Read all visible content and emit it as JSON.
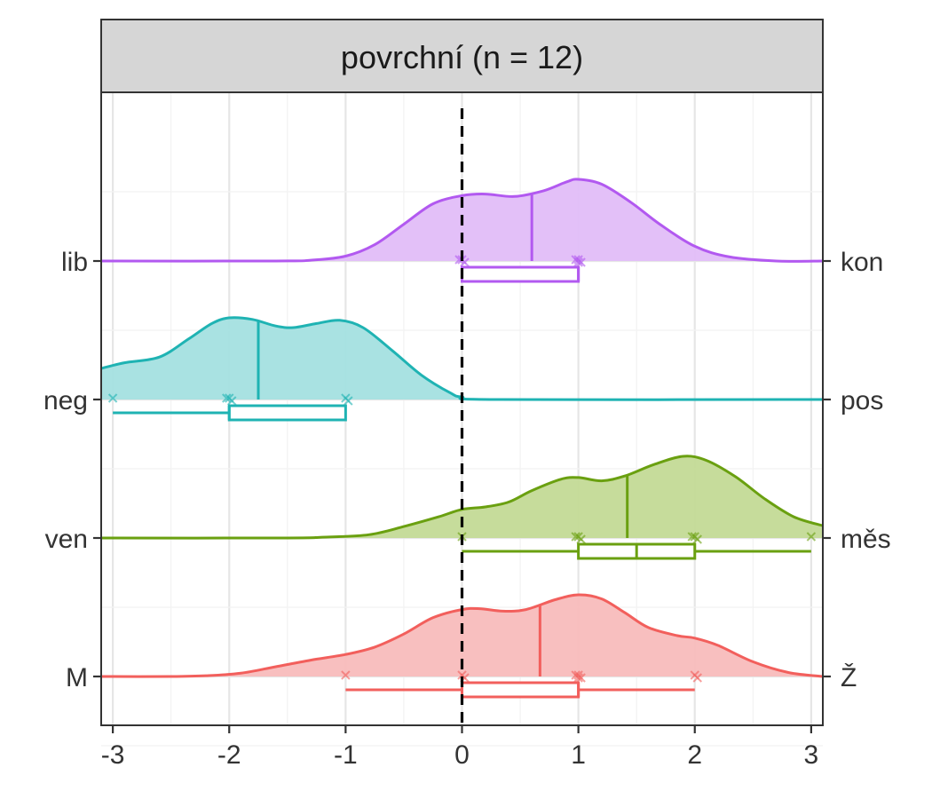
{
  "chart_data": {
    "type": "raincloud",
    "title": "povrchní (n = 12)",
    "xlabel": "",
    "ylabel": "",
    "xlim": [
      -3.1,
      3.1
    ],
    "x_ticks": [
      -3,
      -2,
      -1,
      0,
      1,
      2,
      3
    ],
    "x_tick_labels": [
      "-3",
      "-2",
      "-1",
      "0",
      "1",
      "2",
      "3"
    ],
    "reference_line_x": 0,
    "grid": true,
    "series": [
      {
        "left_label": "M",
        "right_label": "Ž",
        "color": "#f25f5c",
        "fill": "#f8bcbc",
        "mean": 0.67,
        "points": [
          -1,
          0,
          0,
          1,
          1,
          1,
          1,
          2,
          2
        ],
        "box": {
          "whisker_low": -1,
          "q1": 0,
          "median": 1,
          "q3": 1,
          "whisker_high": 2
        },
        "density": [
          [
            -3.1,
            0.0
          ],
          [
            -2.5,
            0.0
          ],
          [
            -2.2,
            0.01
          ],
          [
            -1.9,
            0.04
          ],
          [
            -1.6,
            0.12
          ],
          [
            -1.3,
            0.2
          ],
          [
            -1.0,
            0.27
          ],
          [
            -0.75,
            0.36
          ],
          [
            -0.5,
            0.52
          ],
          [
            -0.25,
            0.72
          ],
          [
            0.0,
            0.82
          ],
          [
            0.15,
            0.83
          ],
          [
            0.35,
            0.8
          ],
          [
            0.55,
            0.82
          ],
          [
            0.8,
            0.94
          ],
          [
            1.0,
            1.0
          ],
          [
            1.2,
            0.95
          ],
          [
            1.4,
            0.78
          ],
          [
            1.6,
            0.6
          ],
          [
            1.85,
            0.5
          ],
          [
            2.0,
            0.47
          ],
          [
            2.2,
            0.38
          ],
          [
            2.5,
            0.18
          ],
          [
            2.8,
            0.05
          ],
          [
            3.1,
            0.0
          ]
        ]
      },
      {
        "left_label": "ven",
        "right_label": "měs",
        "color": "#6aa010",
        "fill": "#c3da96",
        "mean": 1.42,
        "points": [
          0,
          1,
          1,
          1,
          2,
          2,
          2,
          3
        ],
        "box": {
          "whisker_low": 0,
          "q1": 1,
          "median": 1.5,
          "q3": 2,
          "whisker_high": 3
        },
        "density": [
          [
            -3.1,
            0.0
          ],
          [
            -1.5,
            0.0
          ],
          [
            -1.2,
            0.01
          ],
          [
            -0.8,
            0.04
          ],
          [
            -0.5,
            0.14
          ],
          [
            -0.2,
            0.26
          ],
          [
            0.0,
            0.35
          ],
          [
            0.2,
            0.38
          ],
          [
            0.4,
            0.44
          ],
          [
            0.6,
            0.58
          ],
          [
            0.85,
            0.72
          ],
          [
            1.0,
            0.74
          ],
          [
            1.2,
            0.7
          ],
          [
            1.4,
            0.76
          ],
          [
            1.65,
            0.9
          ],
          [
            1.9,
            1.0
          ],
          [
            2.1,
            0.95
          ],
          [
            2.35,
            0.75
          ],
          [
            2.6,
            0.48
          ],
          [
            2.85,
            0.26
          ],
          [
            3.1,
            0.15
          ]
        ]
      },
      {
        "left_label": "neg",
        "right_label": "pos",
        "color": "#1fb3b3",
        "fill": "#a4e0e0",
        "mean": -1.75,
        "points": [
          -3,
          -2,
          -2,
          -2,
          -1,
          -1
        ],
        "box": {
          "whisker_low": -3,
          "q1": -2,
          "median": -2,
          "q3": -1,
          "whisker_high": -1
        },
        "density": [
          [
            -3.1,
            0.38
          ],
          [
            -2.9,
            0.45
          ],
          [
            -2.6,
            0.52
          ],
          [
            -2.35,
            0.74
          ],
          [
            -2.15,
            0.93
          ],
          [
            -2.0,
            1.0
          ],
          [
            -1.8,
            0.98
          ],
          [
            -1.6,
            0.9
          ],
          [
            -1.45,
            0.88
          ],
          [
            -1.25,
            0.93
          ],
          [
            -1.05,
            0.97
          ],
          [
            -0.85,
            0.88
          ],
          [
            -0.6,
            0.6
          ],
          [
            -0.35,
            0.3
          ],
          [
            -0.1,
            0.08
          ],
          [
            0.0,
            0.03
          ],
          [
            0.3,
            0.0
          ],
          [
            3.1,
            0.0
          ]
        ]
      },
      {
        "left_label": "lib",
        "right_label": "kon",
        "color": "#b259f0",
        "fill": "#e2bdf8",
        "mean": 0.6,
        "points": [
          0,
          0,
          0,
          1,
          1,
          1,
          1
        ],
        "box": {
          "whisker_low": 0,
          "q1": 0,
          "median": 1,
          "q3": 1,
          "whisker_high": 1
        },
        "density": [
          [
            -3.1,
            0.0
          ],
          [
            -1.6,
            0.0
          ],
          [
            -1.3,
            0.01
          ],
          [
            -1.0,
            0.06
          ],
          [
            -0.75,
            0.2
          ],
          [
            -0.5,
            0.45
          ],
          [
            -0.25,
            0.7
          ],
          [
            0.0,
            0.8
          ],
          [
            0.2,
            0.82
          ],
          [
            0.45,
            0.79
          ],
          [
            0.7,
            0.86
          ],
          [
            0.9,
            0.97
          ],
          [
            1.0,
            1.0
          ],
          [
            1.2,
            0.94
          ],
          [
            1.45,
            0.72
          ],
          [
            1.7,
            0.45
          ],
          [
            2.0,
            0.18
          ],
          [
            2.3,
            0.05
          ],
          [
            2.7,
            0.0
          ],
          [
            3.1,
            0.0
          ]
        ]
      }
    ]
  }
}
